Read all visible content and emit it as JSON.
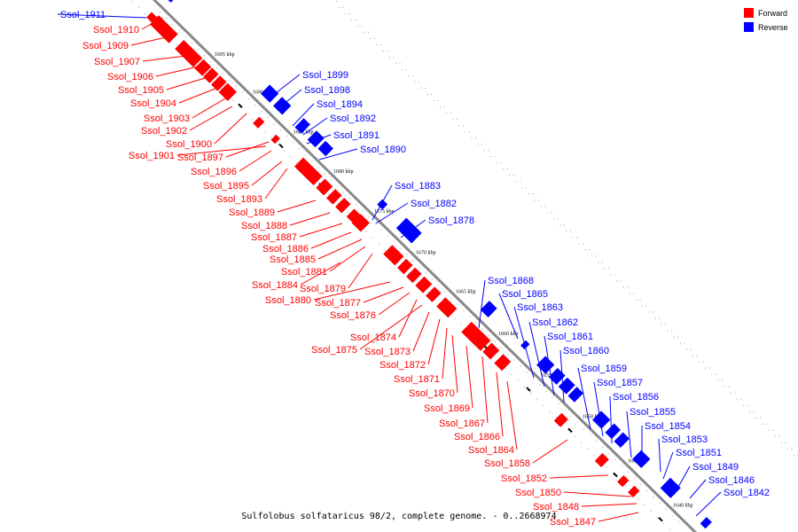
{
  "caption": "Sulfolobus solfataricus 98/2, complete genome. - 0..2668974",
  "legend": [
    {
      "label": "Forward",
      "color": "#ff0000"
    },
    {
      "label": "Reverse",
      "color": "#0000ff"
    }
  ],
  "colors": {
    "forward": "#ff0000",
    "reverse": "#0000ff",
    "backbone": "#808080"
  },
  "ticks": [
    "1695 kbp",
    "1690 kbp",
    "1685 kbp",
    "1680 kbp",
    "1675 kbp",
    "1670 kbp",
    "1665 kbp",
    "1660 kbp",
    "1655 kbp",
    "1650 kbp",
    "1645 kbp",
    "1640 kbp"
  ],
  "forward_genes": [
    "Ssol_1910",
    "Ssol_1909",
    "Ssol_1907",
    "Ssol_1906",
    "Ssol_1905",
    "Ssol_1904",
    "Ssol_1903",
    "Ssol_1902",
    "Ssol_1900",
    "Ssol_1901",
    "Ssol_1897",
    "Ssol_1896",
    "Ssol_1895",
    "Ssol_1893",
    "Ssol_1889",
    "Ssol_1888",
    "Ssol_1887",
    "Ssol_1886",
    "Ssol_1885",
    "Ssol_1881",
    "Ssol_1884",
    "Ssol_1879",
    "Ssol_1880",
    "Ssol_1877",
    "Ssol_1876",
    "Ssol_1874",
    "Ssol_1875",
    "Ssol_1873",
    "Ssol_1872",
    "Ssol_1871",
    "Ssol_1870",
    "Ssol_1869",
    "Ssol_1867",
    "Ssol_1866",
    "Ssol_1864",
    "Ssol_1858",
    "Ssol_1852",
    "Ssol_1850",
    "Ssol_1848",
    "Ssol_1847"
  ],
  "reverse_genes": [
    "Ssol_1911",
    "Ssol_1899",
    "Ssol_1898",
    "Ssol_1894",
    "Ssol_1892",
    "Ssol_1891",
    "Ssol_1890",
    "Ssol_1883",
    "Ssol_1882",
    "Ssol_1878",
    "Ssol_1868",
    "Ssol_1865",
    "Ssol_1863",
    "Ssol_1862",
    "Ssol_1861",
    "Ssol_1860",
    "Ssol_1859",
    "Ssol_1857",
    "Ssol_1856",
    "Ssol_1855",
    "Ssol_1854",
    "Ssol_1853",
    "Ssol_1851",
    "Ssol_1849",
    "Ssol_1846",
    "Ssol_1842"
  ]
}
